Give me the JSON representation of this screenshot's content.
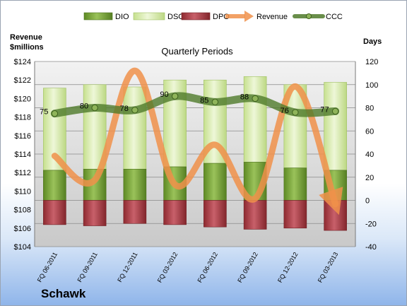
{
  "chart_data": {
    "type": "bar",
    "title": "Quarterly Periods",
    "company": "Schawk",
    "left_axis_label": [
      "Revenue",
      "$millions"
    ],
    "right_axis_label": "Days",
    "categories": [
      "FQ 06-2011",
      "FQ 09-2011",
      "FQ 12-2011",
      "FQ 03-2012",
      "FQ 06-2012",
      "FQ 09-2012",
      "FQ 12-2012",
      "FQ 03-2013"
    ],
    "left_ylim": [
      104,
      124
    ],
    "left_ticks": [
      "$104",
      "$106",
      "$108",
      "$110",
      "$112",
      "$114",
      "$116",
      "$118",
      "$120",
      "$122",
      "$124"
    ],
    "right_ylim": [
      -40,
      120
    ],
    "right_ticks": [
      "-40",
      "-20",
      "0",
      "20",
      "40",
      "60",
      "80",
      "100",
      "120"
    ],
    "legend_position": "top",
    "series": [
      {
        "name": "DIO",
        "axis": "days",
        "color": "#7aa63c",
        "values": [
          26,
          27,
          27,
          29,
          32,
          33,
          28,
          26
        ]
      },
      {
        "name": "DSO",
        "axis": "days",
        "color": "#d9ebb0",
        "values": [
          71,
          73,
          71,
          75,
          72,
          74,
          72,
          76
        ]
      },
      {
        "name": "DPO",
        "axis": "days",
        "color": "#b8434a",
        "values": [
          -21,
          -22,
          -20,
          -21,
          -23,
          -25,
          -24,
          -26
        ]
      },
      {
        "name": "Revenue",
        "axis": "revenue",
        "color": "#f0914a",
        "values": [
          113.8,
          111.2,
          123.0,
          110.7,
          115.0,
          109.2,
          121.3,
          108.6
        ]
      },
      {
        "name": "CCC",
        "axis": "days",
        "color": "#4f7a2a",
        "values": [
          75,
          80,
          78,
          90,
          85,
          88,
          76,
          77
        ]
      }
    ],
    "ccc_labels": [
      "75",
      "80",
      "78",
      "90",
      "85",
      "88",
      "76",
      "77"
    ]
  }
}
